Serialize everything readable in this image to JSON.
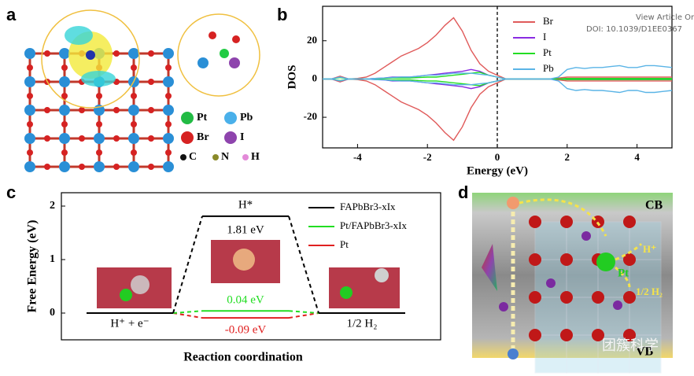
{
  "header": {
    "view_article": "View Article Or",
    "doi": "DOI: 10.1039/D1EE0367"
  },
  "watermark": "团簇科学",
  "panels": {
    "a": {
      "label": "a",
      "legend": [
        "Pt",
        "Pb",
        "Br",
        "I",
        "C",
        "N",
        "H"
      ]
    },
    "b": {
      "label": "b"
    },
    "c": {
      "label": "c"
    },
    "d": {
      "label": "d",
      "texts": {
        "cb": "CB",
        "vb": "VB",
        "pt": "Pt",
        "h_plus": "H⁺",
        "h2": "1/2 H₂"
      }
    }
  },
  "chart_data": [
    {
      "type": "line",
      "xlabel": "Energy (eV)",
      "ylabel": "DOS",
      "xlim": [
        -5,
        5
      ],
      "xticks": [
        -4,
        -2,
        0,
        2,
        4
      ],
      "ylim": [
        -36,
        38
      ],
      "yticks": [
        -20,
        0,
        20
      ],
      "fermi_level": 0,
      "x": [
        -5,
        -4.75,
        -4.5,
        -4.25,
        -4,
        -3.75,
        -3.5,
        -3.25,
        -3,
        -2.75,
        -2.5,
        -2.25,
        -2,
        -1.75,
        -1.5,
        -1.25,
        -1,
        -0.75,
        -0.5,
        -0.25,
        0,
        0.25,
        0.5,
        0.75,
        1,
        1.25,
        1.5,
        1.75,
        2,
        2.25,
        2.5,
        2.75,
        3,
        3.25,
        3.5,
        3.75,
        4,
        4.25,
        4.5,
        4.75,
        5
      ],
      "series": [
        {
          "name": "Br",
          "color": "#e05a5a",
          "values": [
            0,
            0,
            1.5,
            0,
            0.3,
            1,
            3,
            6,
            9,
            12,
            14,
            16,
            19,
            23,
            28,
            32,
            25,
            15,
            8,
            4,
            2,
            0,
            0,
            0,
            0,
            0,
            0,
            0.5,
            1,
            1,
            1,
            1,
            1,
            1,
            1,
            1,
            1,
            1,
            1,
            1,
            1
          ],
          "values_down": [
            0,
            0,
            -1.5,
            0,
            -0.3,
            -1,
            -3,
            -6,
            -9,
            -12,
            -14,
            -16,
            -19,
            -23,
            -28,
            -32,
            -25,
            -15,
            -8,
            -4,
            -2,
            0,
            0,
            0,
            0,
            0,
            0,
            -0.5,
            -1,
            -1,
            -1,
            -1,
            -1,
            -1,
            -1,
            -1,
            -1,
            -1,
            -1,
            -1,
            -1
          ]
        },
        {
          "name": "I",
          "color": "#8a2be2",
          "values": [
            0,
            0,
            1,
            0,
            0,
            0,
            0.3,
            0.5,
            1,
            1,
            1,
            1.5,
            2,
            2.5,
            3,
            3.5,
            4,
            5,
            4,
            2,
            1,
            0,
            0,
            0,
            0,
            0,
            0,
            0,
            0.3,
            0.3,
            0.3,
            0.3,
            0.3,
            0.3,
            0.3,
            0.3,
            0.3,
            0.3,
            0.3,
            0.3,
            0.3
          ],
          "values_down": [
            0,
            0,
            -1,
            0,
            0,
            0,
            -0.3,
            -0.5,
            -1,
            -1,
            -1,
            -1.5,
            -2,
            -2.5,
            -3,
            -3.5,
            -4,
            -5,
            -4,
            -2,
            -1,
            0,
            0,
            0,
            0,
            0,
            0,
            0,
            -0.3,
            -0.3,
            -0.3,
            -0.3,
            -0.3,
            -0.3,
            -0.3,
            -0.3,
            -0.3,
            -0.3,
            -0.3,
            -0.3,
            -0.3
          ]
        },
        {
          "name": "Pt",
          "color": "#22dd22",
          "values": [
            0,
            0,
            0.8,
            0,
            0,
            0,
            0.2,
            0.3,
            0.5,
            0.5,
            0.5,
            0.8,
            1,
            1,
            1.5,
            2,
            2.5,
            3,
            3.5,
            2,
            1,
            0,
            0,
            0,
            0,
            0,
            0,
            0,
            0.3,
            0.3,
            0.3,
            0.3,
            0.3,
            0.3,
            0.3,
            0.3,
            0.3,
            0.3,
            0.3,
            0.3,
            0.3
          ],
          "values_down": [
            0,
            0,
            -0.8,
            0,
            0,
            0,
            -0.2,
            -0.3,
            -0.5,
            -0.5,
            -0.5,
            -0.8,
            -1,
            -1,
            -1.5,
            -2,
            -2.5,
            -3,
            -3.5,
            -2,
            -1,
            0,
            0,
            0,
            0,
            0,
            0,
            0,
            -0.3,
            -0.3,
            -0.3,
            -0.3,
            -0.3,
            -0.3,
            -0.3,
            -0.3,
            -0.3,
            -0.3,
            -0.3,
            -0.3,
            -0.3
          ]
        },
        {
          "name": "Pb",
          "color": "#5ab4e6",
          "values": [
            0,
            0,
            1,
            0,
            0,
            0,
            0.3,
            0.5,
            0.8,
            1,
            1,
            1.5,
            2,
            2,
            2.5,
            3,
            3,
            3,
            2.5,
            2,
            1,
            0,
            0,
            0,
            0,
            0,
            0,
            1,
            5,
            6,
            5.5,
            6,
            6,
            6.5,
            7,
            6,
            6,
            7,
            7,
            6.5,
            6
          ],
          "values_down": [
            0,
            0,
            -1,
            0,
            0,
            0,
            -0.3,
            -0.5,
            -0.8,
            -1,
            -1,
            -1.5,
            -2,
            -2,
            -2.5,
            -3,
            -3,
            -3,
            -2.5,
            -2,
            -1,
            0,
            0,
            0,
            0,
            0,
            0,
            -1,
            -5,
            -6,
            -5.5,
            -6,
            -6,
            -6.5,
            -7,
            -6,
            -6,
            -7,
            -7,
            -6.5,
            -6
          ]
        }
      ]
    },
    {
      "type": "energy_diagram",
      "xlabel": "Reaction coordination",
      "ylabel": "Free Energy (eV)",
      "ylim": [
        -0.5,
        2.25
      ],
      "yticks": [
        0,
        1,
        2
      ],
      "categories": [
        "H⁺ + e⁻",
        "H*",
        "1/2 H₂"
      ],
      "series": [
        {
          "name": "Pt",
          "color": "#e02020",
          "values": [
            0,
            -0.09,
            0
          ],
          "value_labels": [
            null,
            "-0.09 eV",
            null
          ]
        },
        {
          "name": "Pt/FAPbBr3-xIx",
          "color": "#22dd22",
          "values": [
            0,
            0.04,
            0
          ],
          "value_labels": [
            null,
            "0.04 eV",
            null
          ]
        },
        {
          "name": "FAPbBr3-xIx",
          "color": "#000000",
          "values": [
            0,
            1.81,
            0
          ],
          "value_labels": [
            null,
            "1.81 eV",
            null
          ]
        }
      ]
    }
  ]
}
